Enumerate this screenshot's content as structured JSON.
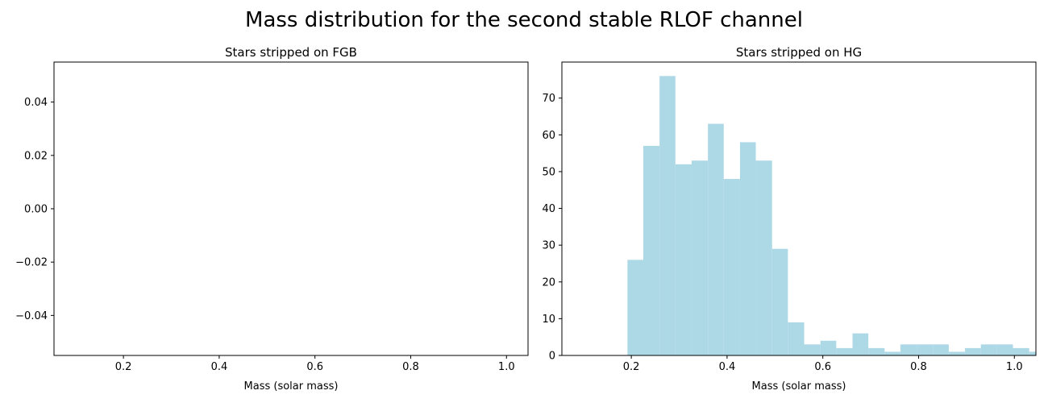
{
  "figure": {
    "suptitle": "Mass distribution for the second stable RLOF channel"
  },
  "chart_data": [
    {
      "type": "bar",
      "title": "Stars stripped on FGB",
      "xlabel": "Mass (solar mass)",
      "ylabel": "",
      "xlim": [
        0.055,
        1.045
      ],
      "ylim": [
        -0.055,
        0.055
      ],
      "xticks": [
        0.2,
        0.4,
        0.6,
        0.8,
        1.0
      ],
      "xtick_labels": [
        "0.2",
        "0.4",
        "0.6",
        "0.8",
        "1.0"
      ],
      "yticks": [
        -0.04,
        -0.02,
        0.0,
        0.02,
        0.04
      ],
      "ytick_labels": [
        "−0.04",
        "−0.02",
        "0.00",
        "0.02",
        "0.04"
      ],
      "bins": [],
      "color": "#add8e6"
    },
    {
      "type": "bar",
      "title": "Stars stripped on HG",
      "xlabel": "Mass (solar mass)",
      "ylabel": "",
      "xlim": [
        0.055,
        1.045
      ],
      "ylim": [
        0,
        79.8
      ],
      "xticks": [
        0.2,
        0.4,
        0.6,
        0.8,
        1.0
      ],
      "xtick_labels": [
        "0.2",
        "0.4",
        "0.6",
        "0.8",
        "1.0"
      ],
      "yticks": [
        0,
        10,
        20,
        30,
        40,
        50,
        60,
        70
      ],
      "ytick_labels": [
        "0",
        "10",
        "20",
        "30",
        "40",
        "50",
        "60",
        "70"
      ],
      "bins": [
        {
          "x0": 0.192,
          "x1": 0.225,
          "count": 26
        },
        {
          "x0": 0.225,
          "x1": 0.259,
          "count": 57
        },
        {
          "x0": 0.259,
          "x1": 0.292,
          "count": 76
        },
        {
          "x0": 0.292,
          "x1": 0.326,
          "count": 52
        },
        {
          "x0": 0.326,
          "x1": 0.36,
          "count": 53
        },
        {
          "x0": 0.36,
          "x1": 0.393,
          "count": 63
        },
        {
          "x0": 0.393,
          "x1": 0.427,
          "count": 48
        },
        {
          "x0": 0.427,
          "x1": 0.46,
          "count": 58
        },
        {
          "x0": 0.46,
          "x1": 0.494,
          "count": 53
        },
        {
          "x0": 0.494,
          "x1": 0.527,
          "count": 29
        },
        {
          "x0": 0.527,
          "x1": 0.561,
          "count": 9
        },
        {
          "x0": 0.561,
          "x1": 0.595,
          "count": 3
        },
        {
          "x0": 0.595,
          "x1": 0.628,
          "count": 4
        },
        {
          "x0": 0.628,
          "x1": 0.662,
          "count": 2
        },
        {
          "x0": 0.662,
          "x1": 0.695,
          "count": 6
        },
        {
          "x0": 0.695,
          "x1": 0.729,
          "count": 2
        },
        {
          "x0": 0.729,
          "x1": 0.762,
          "count": 1
        },
        {
          "x0": 0.762,
          "x1": 0.796,
          "count": 3
        },
        {
          "x0": 0.796,
          "x1": 0.83,
          "count": 3
        },
        {
          "x0": 0.83,
          "x1": 0.863,
          "count": 3
        },
        {
          "x0": 0.863,
          "x1": 0.897,
          "count": 1
        },
        {
          "x0": 0.897,
          "x1": 0.93,
          "count": 2
        },
        {
          "x0": 0.93,
          "x1": 0.964,
          "count": 3
        },
        {
          "x0": 0.964,
          "x1": 0.997,
          "count": 3
        },
        {
          "x0": 0.997,
          "x1": 1.031,
          "count": 2
        },
        {
          "x0": 1.031,
          "x1": 1.064,
          "count": 1
        }
      ],
      "color": "#add8e6"
    }
  ]
}
